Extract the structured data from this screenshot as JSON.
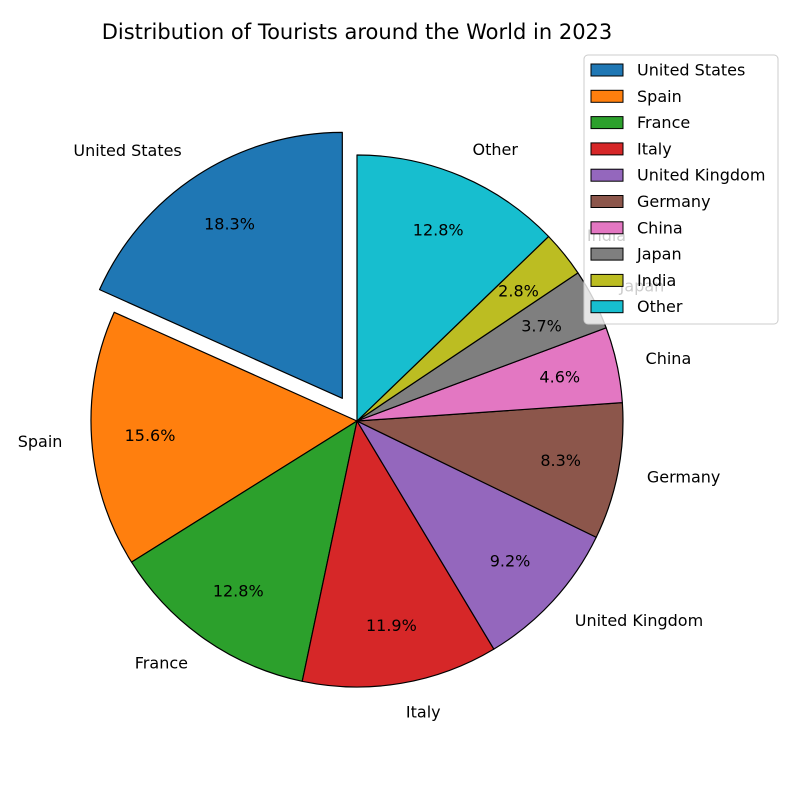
{
  "chart_data": {
    "type": "pie",
    "title": "Distribution of Tourists around the World in 2023",
    "categories": [
      "United States",
      "Spain",
      "France",
      "Italy",
      "United Kingdom",
      "Germany",
      "China",
      "Japan",
      "India",
      "Other"
    ],
    "values": [
      18.3,
      15.6,
      12.8,
      11.9,
      9.2,
      8.3,
      4.6,
      3.7,
      2.8,
      12.8
    ],
    "value_labels": [
      "18.3%",
      "15.6%",
      "12.8%",
      "11.9%",
      "9.2%",
      "8.3%",
      "4.6%",
      "3.7%",
      "2.8%",
      "12.8%"
    ],
    "colors": [
      "#1f77b4",
      "#ff7f0e",
      "#2ca02c",
      "#d62728",
      "#9467bd",
      "#8c564b",
      "#e377c2",
      "#7f7f7f",
      "#bcbd22",
      "#17becf"
    ],
    "exploded": [
      "United States"
    ],
    "start_angle": 90,
    "direction": "counterclockwise",
    "legend": {
      "position": "top-right",
      "entries": [
        "United States",
        "Spain",
        "France",
        "Italy",
        "United Kingdom",
        "Germany",
        "China",
        "Japan",
        "India",
        "Other"
      ]
    }
  }
}
